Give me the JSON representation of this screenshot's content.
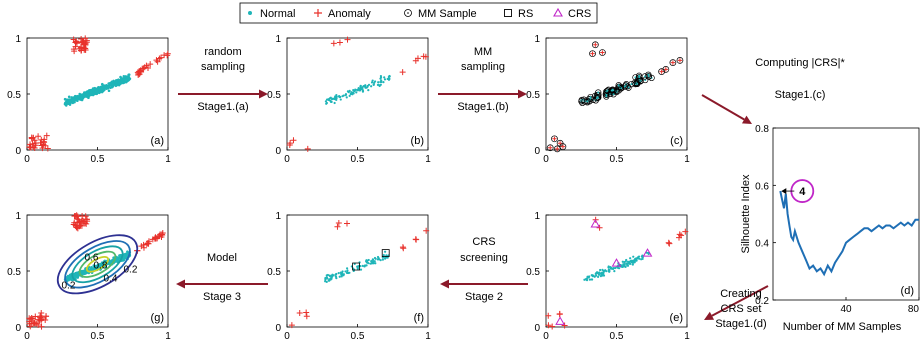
{
  "legend": {
    "items": [
      {
        "label": "Normal",
        "marker": "dot",
        "color": "#1fb5b8"
      },
      {
        "label": "Anomaly",
        "marker": "plus",
        "color": "#e8312b"
      },
      {
        "label": "MM Sample",
        "marker": "dotted-circle",
        "color": "#000000"
      },
      {
        "label": "RS",
        "marker": "square",
        "color": "#000000"
      },
      {
        "label": "CRS",
        "marker": "triangle",
        "color": "#c026c8"
      }
    ]
  },
  "colors": {
    "normal": "#1fb5b8",
    "anomaly": "#e8312b",
    "crs": "#c026c8",
    "arrow": "#8b1a2a",
    "line": "#1f6fb5"
  },
  "axes": {
    "xticks": [
      "0",
      "0.5",
      "1"
    ],
    "yticks": [
      "0",
      "0.5",
      "1"
    ]
  },
  "panels": [
    {
      "id": "a",
      "label": "(a)",
      "density": "dense"
    },
    {
      "id": "b",
      "label": "(b)",
      "density": "sparse"
    },
    {
      "id": "c",
      "label": "(c)",
      "density": "mm"
    },
    {
      "id": "e",
      "label": "(e)",
      "density": "crs"
    },
    {
      "id": "f",
      "label": "(f)",
      "density": "rs"
    },
    {
      "id": "g",
      "label": "(g)",
      "density": "model"
    }
  ],
  "arrows": [
    {
      "line1": "random",
      "line2": "sampling",
      "stage": "Stage1.(a)"
    },
    {
      "line1": "MM",
      "line2": "sampling",
      "stage": "Stage1.(b)"
    },
    {
      "line1": "Computing |CRS|*",
      "line2": "",
      "stage": "Stage1.(c)"
    },
    {
      "line1": "Creating",
      "line2": "CRS set",
      "stage": "Stage1.(d)"
    },
    {
      "line1": "CRS",
      "line2": "screening",
      "stage": "Stage 2"
    },
    {
      "line1": "Model",
      "line2": "",
      "stage": "Stage 3"
    }
  ],
  "contour_labels": [
    "0.2",
    "0.8",
    "0.6",
    "0.4",
    "0.2"
  ],
  "silhouette": {
    "label": "(d)",
    "ylabel": "Silhouette Index",
    "xlabel": "Number of MM Samples",
    "yticks": [
      "0.8",
      "0.6",
      "0.4",
      "0.2"
    ],
    "xticks": [
      "40",
      "80"
    ],
    "annotation": "4",
    "chart_data": {
      "type": "line",
      "x": [
        4,
        5,
        6,
        7,
        8,
        9,
        10,
        11,
        12,
        14,
        16,
        18,
        20,
        22,
        24,
        26,
        28,
        30,
        32,
        34,
        36,
        38,
        40,
        42,
        44,
        46,
        48,
        50,
        52,
        54,
        56,
        58,
        60,
        62,
        64,
        66,
        68,
        70,
        72,
        74,
        76,
        78,
        80
      ],
      "y": [
        0.58,
        0.55,
        0.52,
        0.57,
        0.5,
        0.46,
        0.42,
        0.41,
        0.44,
        0.4,
        0.37,
        0.34,
        0.31,
        0.32,
        0.3,
        0.31,
        0.29,
        0.32,
        0.3,
        0.33,
        0.35,
        0.37,
        0.4,
        0.41,
        0.42,
        0.43,
        0.44,
        0.45,
        0.45,
        0.44,
        0.45,
        0.46,
        0.45,
        0.46,
        0.46,
        0.45,
        0.46,
        0.47,
        0.46,
        0.47,
        0.46,
        0.48,
        0.48
      ],
      "xlim": [
        0,
        80
      ],
      "ylim": [
        0.2,
        0.8
      ],
      "ylabel": "Silhouette Index",
      "xlabel": "Number of MM Samples"
    }
  }
}
